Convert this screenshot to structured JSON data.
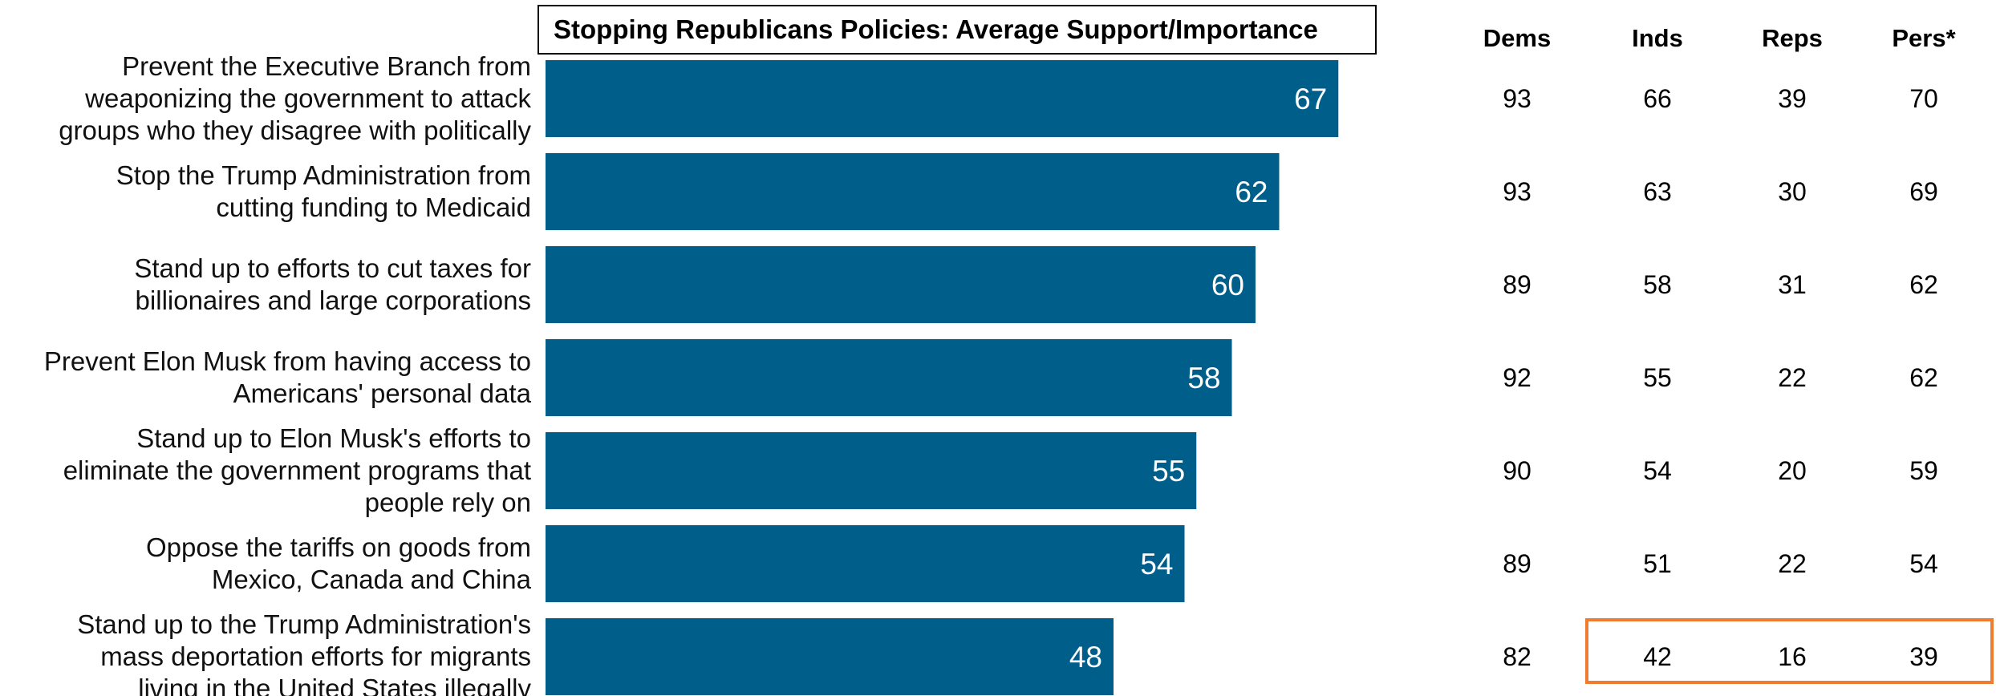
{
  "chart_data": {
    "type": "bar",
    "orientation": "horizontal",
    "title": "Stopping Republicans Policies: Average Support/Importance",
    "categories": [
      [
        "Prevent the Executive Branch from",
        "weaponizing the government to attack",
        "groups who they disagree with politically"
      ],
      [
        "Stop the Trump Administration from",
        "cutting funding to Medicaid"
      ],
      [
        "Stand up to efforts to cut taxes for",
        "billionaires and large corporations"
      ],
      [
        "Prevent Elon Musk from having access to",
        "Americans' personal data"
      ],
      [
        "Stand up to Elon Musk's efforts to",
        "eliminate the government programs that",
        "people rely on"
      ],
      [
        "Oppose the tariffs on goods from",
        "Mexico, Canada and China"
      ],
      [
        "Stand up to the Trump Administration's",
        "mass deportation efforts for migrants",
        "living in the United States illegally"
      ]
    ],
    "values": [
      67,
      62,
      60,
      58,
      55,
      54,
      48
    ],
    "xlim": [
      0,
      100
    ],
    "bar_color": "#005f8a",
    "grid": false,
    "table": {
      "columns": [
        "Dems",
        "Inds",
        "Reps",
        "Pers*"
      ],
      "rows": [
        [
          93,
          66,
          39,
          70
        ],
        [
          93,
          63,
          30,
          69
        ],
        [
          89,
          58,
          31,
          62
        ],
        [
          92,
          55,
          22,
          62
        ],
        [
          90,
          54,
          20,
          59
        ],
        [
          89,
          51,
          22,
          54
        ],
        [
          82,
          42,
          16,
          39
        ]
      ],
      "highlight": {
        "row": 6,
        "columns": [
          1,
          2,
          3
        ],
        "color": "#ee7d31"
      }
    }
  }
}
